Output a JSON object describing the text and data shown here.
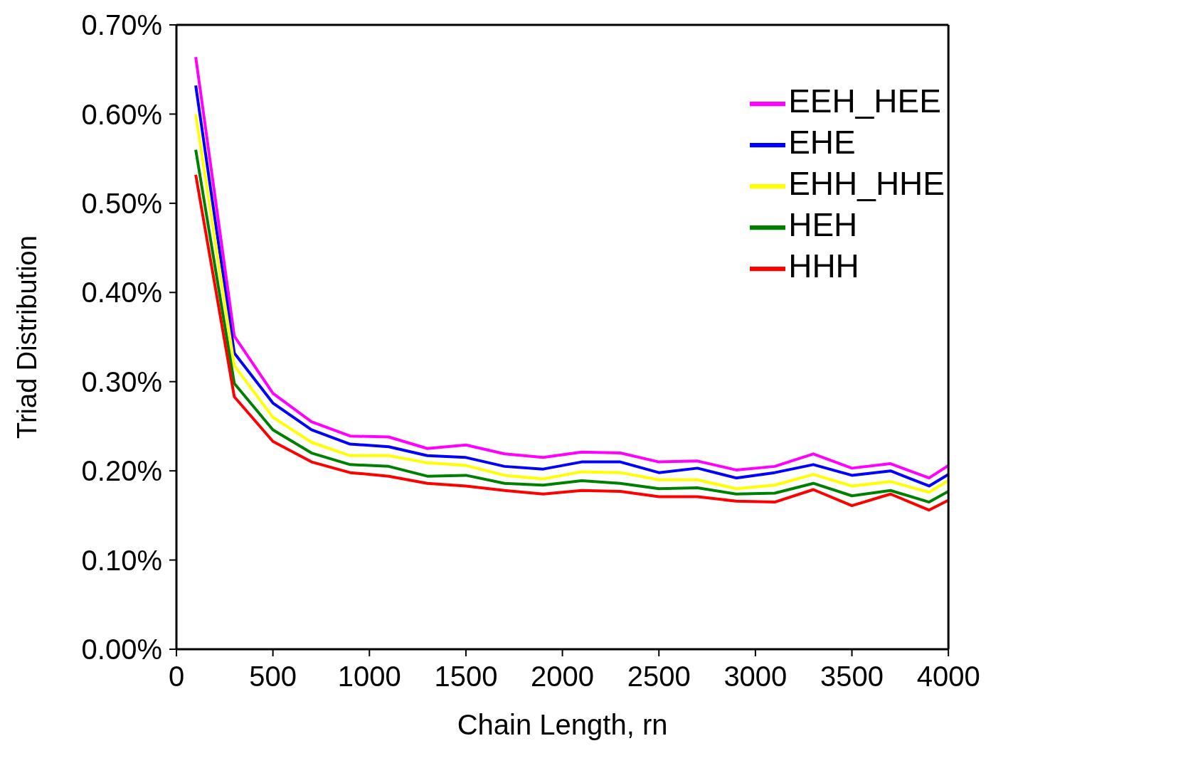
{
  "chart_data": {
    "type": "line",
    "xlabel": "Chain Length, rn",
    "ylabel": "Triad Distribution",
    "x": [
      100,
      300,
      500,
      700,
      900,
      1100,
      1300,
      1500,
      1700,
      1900,
      2100,
      2300,
      2500,
      2700,
      2900,
      3100,
      3300,
      3500,
      3700,
      3900,
      4000
    ],
    "series": [
      {
        "name": "EEH_HEE",
        "color": "#ff00ff",
        "values": [
          0.664,
          0.351,
          0.287,
          0.255,
          0.239,
          0.238,
          0.225,
          0.229,
          0.219,
          0.215,
          0.221,
          0.22,
          0.21,
          0.211,
          0.201,
          0.205,
          0.219,
          0.203,
          0.208,
          0.192,
          0.206
        ]
      },
      {
        "name": "EHE",
        "color": "#0000ff",
        "values": [
          0.632,
          0.332,
          0.276,
          0.246,
          0.23,
          0.227,
          0.217,
          0.215,
          0.205,
          0.202,
          0.21,
          0.21,
          0.198,
          0.203,
          0.192,
          0.198,
          0.207,
          0.195,
          0.2,
          0.183,
          0.196
        ]
      },
      {
        "name": "EHH_HHE",
        "color": "#ffff00",
        "values": [
          0.6,
          0.318,
          0.26,
          0.232,
          0.217,
          0.217,
          0.209,
          0.206,
          0.195,
          0.191,
          0.199,
          0.198,
          0.19,
          0.19,
          0.18,
          0.184,
          0.196,
          0.183,
          0.188,
          0.176,
          0.189
        ]
      },
      {
        "name": "HEH",
        "color": "#008000",
        "values": [
          0.56,
          0.298,
          0.246,
          0.22,
          0.207,
          0.205,
          0.194,
          0.195,
          0.186,
          0.184,
          0.189,
          0.186,
          0.18,
          0.181,
          0.174,
          0.175,
          0.186,
          0.172,
          0.178,
          0.165,
          0.177
        ]
      },
      {
        "name": "HHH",
        "color": "#ff0000",
        "values": [
          0.532,
          0.283,
          0.233,
          0.21,
          0.198,
          0.194,
          0.186,
          0.183,
          0.178,
          0.174,
          0.178,
          0.177,
          0.171,
          0.171,
          0.166,
          0.165,
          0.179,
          0.161,
          0.174,
          0.156,
          0.167
        ]
      }
    ],
    "xlim": [
      0,
      4000
    ],
    "xticks": [
      0,
      500,
      1000,
      1500,
      2000,
      2500,
      3000,
      3500,
      4000
    ],
    "ylim": [
      0,
      0.7
    ],
    "yticks": [
      {
        "value": 0,
        "label": "0.00%"
      },
      {
        "value": 0.1,
        "label": "0.10%"
      },
      {
        "value": 0.2,
        "label": "0.20%"
      },
      {
        "value": 0.3,
        "label": "0.30%"
      },
      {
        "value": 0.4,
        "label": "0.40%"
      },
      {
        "value": 0.5,
        "label": "0.50%"
      },
      {
        "value": 0.6,
        "label": "0.60%"
      },
      {
        "value": 0.7,
        "label": "0.70%"
      }
    ],
    "legend": "top right",
    "grid": false,
    "marker": "none",
    "line_style": "solid"
  }
}
